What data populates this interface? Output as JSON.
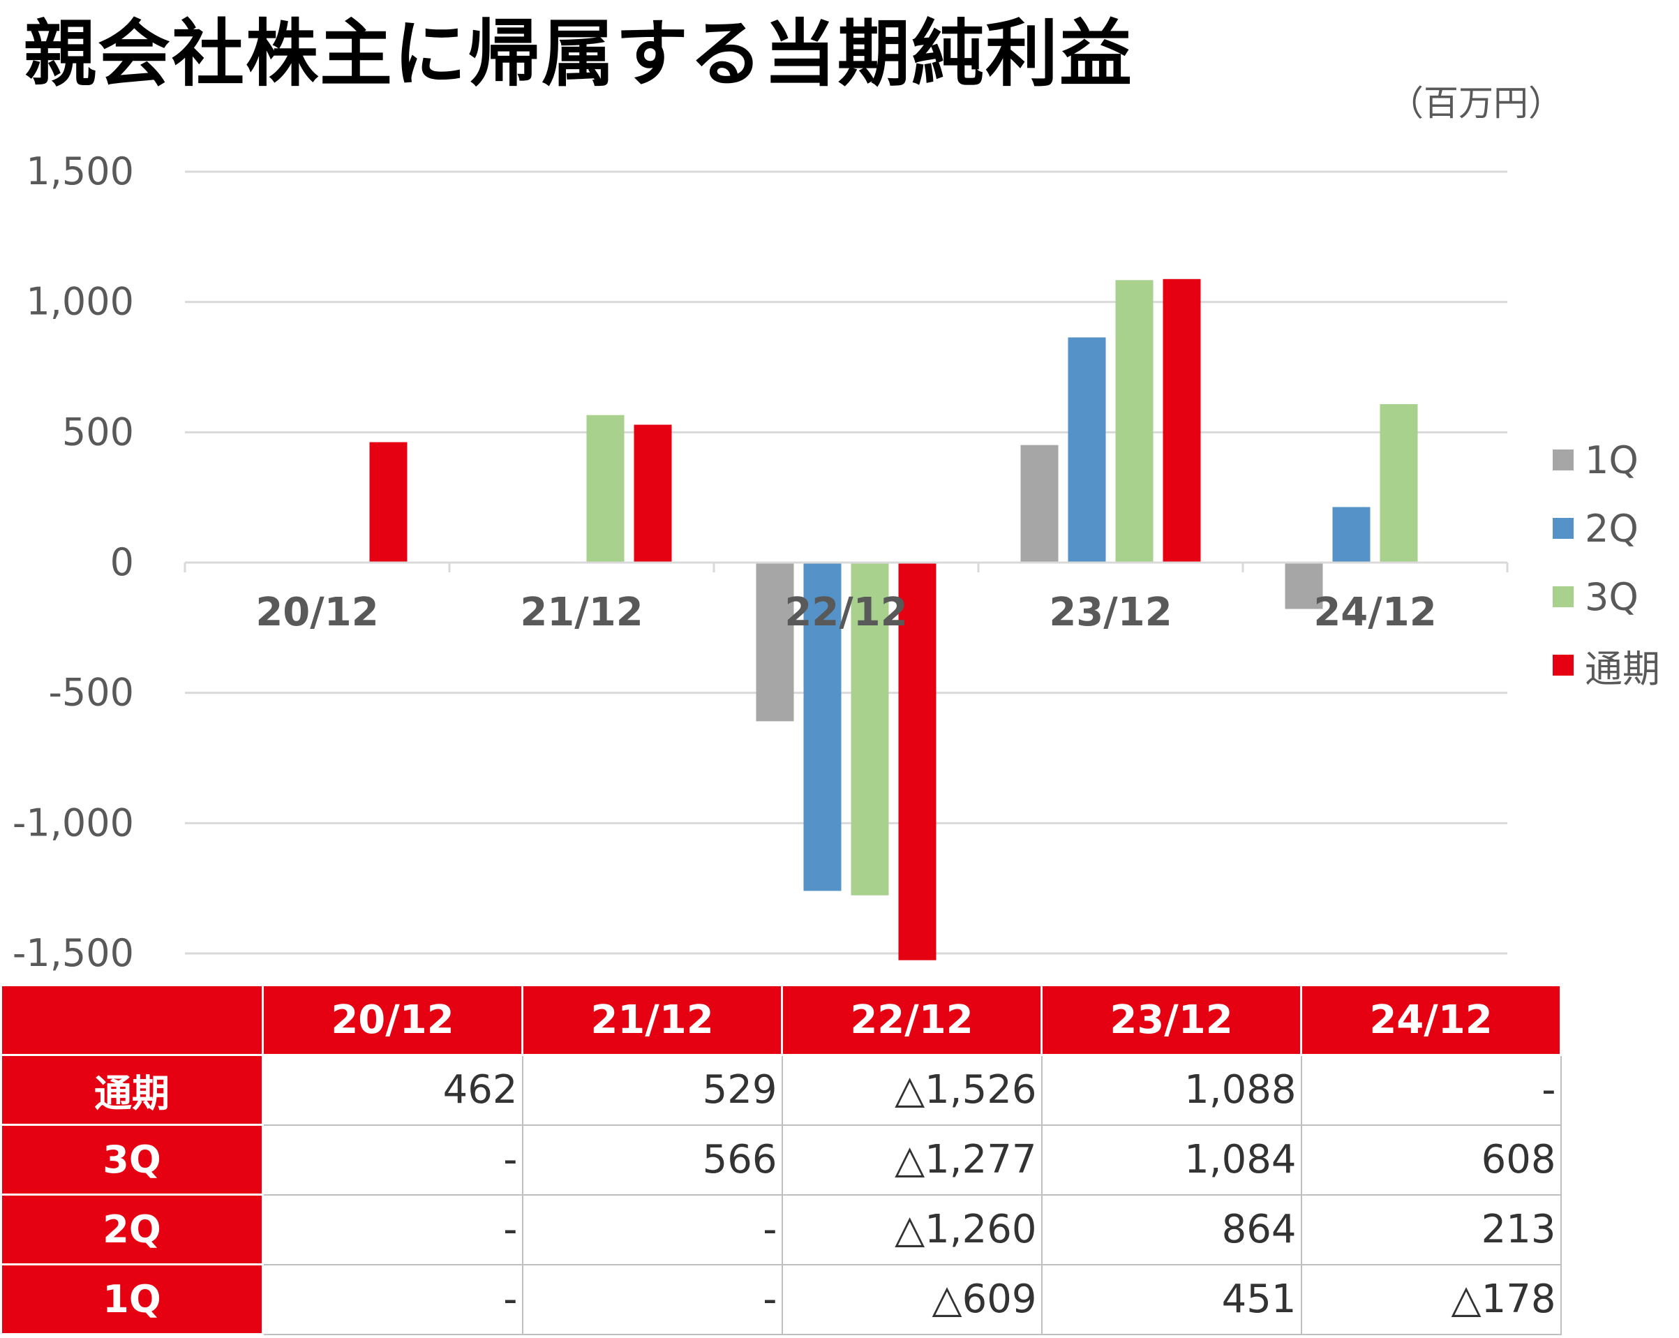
{
  "title": "親会社株主に帰属する当期純利益",
  "unit": "（百万円）",
  "colors": {
    "1Q": "#a6a6a6",
    "2Q": "#5592c8",
    "3Q": "#a9d18e",
    "通期": "#e50012",
    "header_bg": "#e50012"
  },
  "chart_data": {
    "type": "bar",
    "categories": [
      "20/12",
      "21/12",
      "22/12",
      "23/12",
      "24/12"
    ],
    "series": [
      {
        "name": "1Q",
        "values": [
          null,
          null,
          -609,
          451,
          -178
        ]
      },
      {
        "name": "2Q",
        "values": [
          null,
          null,
          -1260,
          864,
          213
        ]
      },
      {
        "name": "3Q",
        "values": [
          null,
          566,
          -1277,
          1084,
          608
        ]
      },
      {
        "name": "通期",
        "values": [
          462,
          529,
          -1526,
          1088,
          null
        ]
      }
    ],
    "ylim": [
      -1500,
      1500
    ],
    "yticks": [
      1500,
      1000,
      500,
      0,
      -500,
      -1000,
      -1500
    ],
    "ytick_labels": [
      "1,500",
      "1,000",
      "500",
      "0",
      "-500",
      "-1,000",
      "-1,500"
    ],
    "grid": true,
    "legend_position": "right"
  },
  "legend": [
    "1Q",
    "2Q",
    "3Q",
    "通期"
  ],
  "table": {
    "columns": [
      "20/12",
      "21/12",
      "22/12",
      "23/12",
      "24/12"
    ],
    "rows": [
      {
        "label": "通期",
        "values": [
          "462",
          "529",
          "△1,526",
          "1,088",
          "-"
        ]
      },
      {
        "label": "3Q",
        "values": [
          "-",
          "566",
          "△1,277",
          "1,084",
          "608"
        ]
      },
      {
        "label": "2Q",
        "values": [
          "-",
          "-",
          "△1,260",
          "864",
          "213"
        ]
      },
      {
        "label": "1Q",
        "values": [
          "-",
          "-",
          "△609",
          "451",
          "△178"
        ]
      }
    ]
  }
}
